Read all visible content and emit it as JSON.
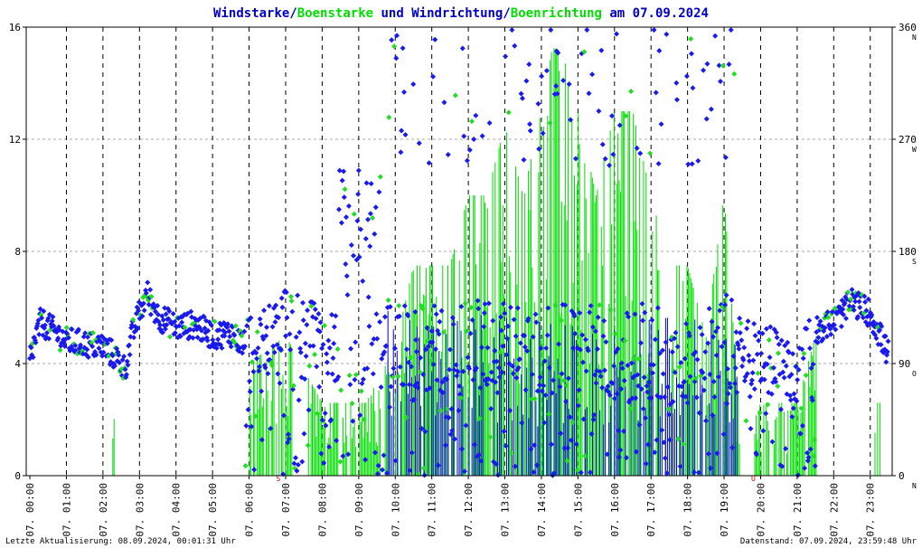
{
  "title": {
    "part1": "Windstarke/",
    "part2": "Boenstarke",
    "part3": " und Windrichtung/",
    "part4": "Boenrichtung",
    "part5": " am 07.09.2024"
  },
  "footer": {
    "left": "Letzte Aktualisierung: 08.09.2024, 00:01:31 Uhr",
    "right": "Datenstand: 07.09.2024, 23:59:48 Uhr"
  },
  "colors": {
    "wind": "#0000cc",
    "gust": "#00dd00",
    "direction": "#1a1aee",
    "gust_direction": "#22dd22",
    "grid": "#aaaaaa",
    "marker": "#cc0000"
  },
  "chart_data": {
    "type": "scatter",
    "x_ticks": [
      "07. 00:00",
      "07. 01:00",
      "07. 02:00",
      "07. 03:00",
      "07. 04:00",
      "07. 05:00",
      "07. 06:00",
      "07. 07:00",
      "07. 08:00",
      "07. 09:00",
      "07. 10:00",
      "07. 11:00",
      "07. 12:00",
      "07. 13:00",
      "07. 14:00",
      "07. 15:00",
      "07. 16:00",
      "07. 17:00",
      "07. 18:00",
      "07. 19:00",
      "07. 20:00",
      "07. 21:00",
      "07. 22:00",
      "07. 23:00"
    ],
    "y_left_ticks": [
      0,
      4,
      8,
      12,
      16
    ],
    "y_right_ticks": [
      0,
      90,
      180,
      270,
      360
    ],
    "y_right_compass": [
      "N",
      "O",
      "S",
      "W",
      "N"
    ],
    "ylim_left": [
      0,
      16
    ],
    "ylim_right": [
      0,
      360
    ],
    "xlim_hours": [
      -0.1,
      23.6
    ],
    "grid": true,
    "markers": [
      {
        "label": "S",
        "hour": 6.8
      },
      {
        "label": "U",
        "hour": 19.8
      }
    ],
    "wind_speed_profile": {
      "hours": [
        0,
        0.3,
        0.6,
        1,
        1.5,
        2,
        2.3,
        2.6,
        2.8,
        3,
        3.2,
        3.5,
        4,
        4.5,
        5,
        5.5,
        6,
        6.5,
        7,
        7.5,
        8,
        8.5,
        9,
        9.5,
        10,
        11,
        12,
        13,
        14,
        15,
        16,
        17,
        18,
        19,
        19.5,
        20,
        20.5,
        21,
        21.5,
        22,
        22.5,
        23,
        23.5
      ],
      "values": [
        4.2,
        5.5,
        5.2,
        4.8,
        4.7,
        4.6,
        4.3,
        3.8,
        5.0,
        5.8,
        6.5,
        5.7,
        5.3,
        5.4,
        5.0,
        5.1,
        4.5,
        5.0,
        5.6,
        5.3,
        5.0,
        4.5,
        4.8,
        5.0,
        4.4,
        4.5,
        4.6,
        4.5,
        4.3,
        4.4,
        4.4,
        4.5,
        4.3,
        4.8,
        4.6,
        4.4,
        4.1,
        3.6,
        5.2,
        5.5,
        6.2,
        5.8,
        4.3
      ]
    },
    "gust_speed_envelope": {
      "hours": [
        2.3,
        6,
        7,
        8,
        8.6,
        9.2,
        10,
        10.5,
        11,
        11.5,
        12,
        12.5,
        13,
        13.5,
        14,
        14.3,
        14.6,
        15,
        15.5,
        16,
        16.5,
        17,
        17.5,
        18,
        18.5,
        19,
        19.5,
        20,
        21,
        21.5,
        23.2
      ],
      "values": [
        2.6,
        4.0,
        5.0,
        2.6,
        2.6,
        2.6,
        4.6,
        7.5,
        7.5,
        7.5,
        10.0,
        10.0,
        12.5,
        10.0,
        13.0,
        15.3,
        15.0,
        13.0,
        10.0,
        13.0,
        13.0,
        10.0,
        7.5,
        7.5,
        5.0,
        10.0,
        0.8,
        2.6,
        2.6,
        5.0,
        2.6
      ]
    }
  }
}
